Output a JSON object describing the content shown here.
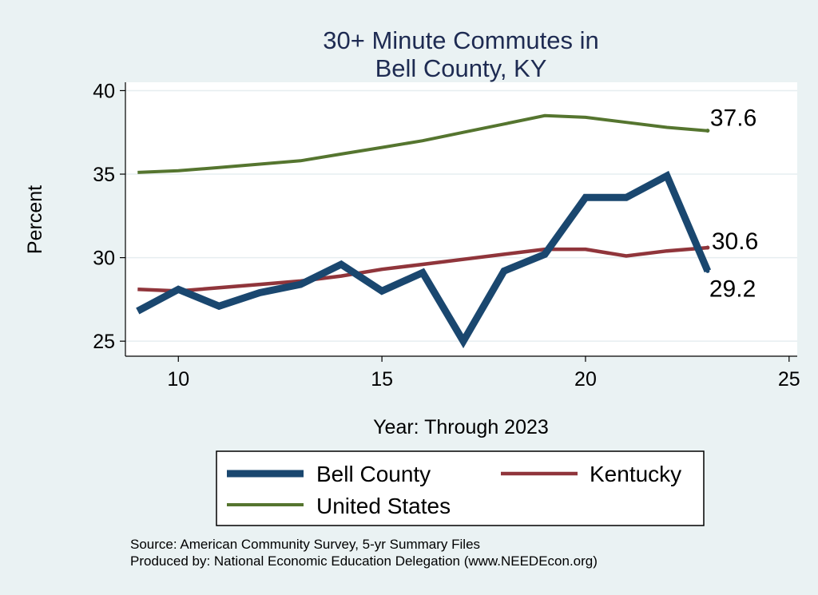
{
  "chart_data": {
    "type": "line",
    "title": [
      "30+ Minute Commutes in",
      "Bell County, KY"
    ],
    "xlabel": "Year: Through 2023",
    "ylabel": "Percent",
    "xlim": [
      8.7,
      25.2
    ],
    "ylim": [
      24.1,
      40.5
    ],
    "xticks": [
      10,
      15,
      20,
      25
    ],
    "yticks": [
      25,
      30,
      35,
      40
    ],
    "grid": true,
    "x": [
      9,
      10,
      11,
      12,
      13,
      14,
      15,
      16,
      17,
      18,
      19,
      20,
      21,
      22,
      23
    ],
    "series": [
      {
        "name": "Bell County",
        "color": "#1a476f",
        "values": [
          26.8,
          28.1,
          27.1,
          27.9,
          28.4,
          29.6,
          28.0,
          29.1,
          25.0,
          29.2,
          30.2,
          33.6,
          33.6,
          34.9,
          29.2
        ],
        "end_label": "29.2"
      },
      {
        "name": "Kentucky",
        "color": "#90353b",
        "values": [
          28.1,
          28.0,
          28.2,
          28.4,
          28.6,
          28.9,
          29.3,
          29.6,
          29.9,
          30.2,
          30.5,
          30.5,
          30.1,
          30.4,
          30.6
        ],
        "end_label": "30.6"
      },
      {
        "name": "United States",
        "color": "#55752f",
        "values": [
          35.1,
          35.2,
          35.4,
          35.6,
          35.8,
          36.2,
          36.6,
          37.0,
          37.5,
          38.0,
          38.5,
          38.4,
          38.1,
          37.8,
          37.6
        ],
        "end_label": "37.6"
      }
    ],
    "legend": [
      "Bell County",
      "Kentucky",
      "United States"
    ],
    "legend_position": "bottom",
    "source": [
      "Source: American Community Survey, 5-yr Summary Files",
      "Produced by: National Economic Education Delegation (www.NEEDEcon.org)"
    ]
  }
}
